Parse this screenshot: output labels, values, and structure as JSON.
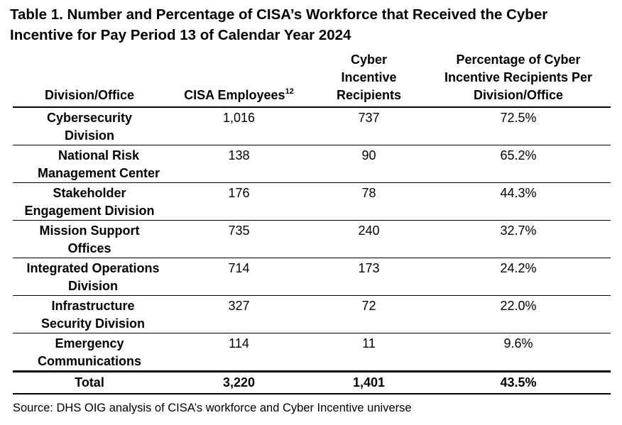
{
  "title": "Table 1. Number and Percentage of CISA’s Workforce that Received the Cyber Incentive for Pay Period 13 of Calendar Year 2024",
  "table": {
    "headers": {
      "division": "Division/Office",
      "employees": "CISA Employees",
      "employees_footnote": "12",
      "recipients": "Cyber Incentive Recipients",
      "percentage": "Percentage of Cyber Incentive Recipients Per Division/Office"
    },
    "rows": [
      {
        "division": "Cybersecurity Division",
        "employees": "1,016",
        "recipients": "737",
        "percentage": "72.5%"
      },
      {
        "division": "National Risk Management Center",
        "employees": "138",
        "recipients": "90",
        "percentage": "65.2%"
      },
      {
        "division": "Stakeholder Engagement Division",
        "employees": "176",
        "recipients": "78",
        "percentage": "44.3%"
      },
      {
        "division": "Mission Support Offices",
        "employees": "735",
        "recipients": "240",
        "percentage": "32.7%"
      },
      {
        "division": "Integrated Operations Division",
        "employees": "714",
        "recipients": "173",
        "percentage": "24.2%"
      },
      {
        "division": "Infrastructure Security Division",
        "employees": "327",
        "recipients": "72",
        "percentage": "22.0%"
      },
      {
        "division": "Emergency Communications",
        "employees": "114",
        "recipients": "11",
        "percentage": "9.6%"
      }
    ],
    "total": {
      "label": "Total",
      "employees": "3,220",
      "recipients": "1,401",
      "percentage": "43.5%"
    }
  },
  "source": "Source: DHS OIG analysis of CISA’s workforce and Cyber Incentive universe"
}
